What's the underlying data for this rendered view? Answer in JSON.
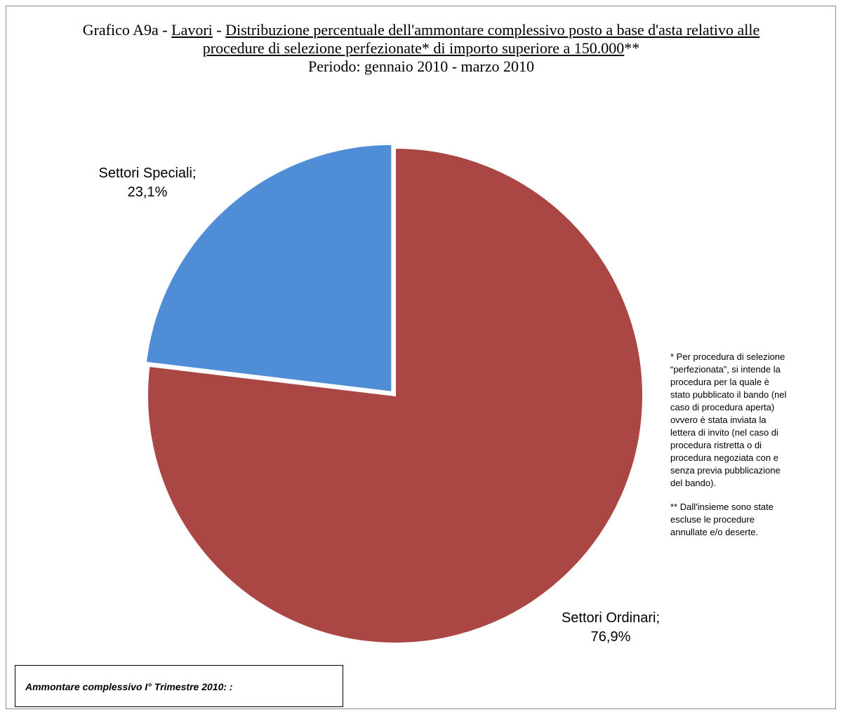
{
  "chart_data": {
    "type": "pie",
    "title": {
      "prefix": "Grafico A9a - ",
      "sector": "Lavori",
      "dash": " - ",
      "main": "Distribuzione percentuale dell'ammontare complessivo posto a base d'asta relativo alle procedure di selezione perfezionate* di importo superiore a 150.000",
      "suffix": "**",
      "period": "Periodo: gennaio 2010 - marzo 2010"
    },
    "slices": [
      {
        "label": "Settori Ordinari;",
        "value_label": "76,9%",
        "value": 76.9,
        "color": "#AA4643"
      },
      {
        "label": "Settori Speciali;",
        "value_label": "23,1%",
        "value": 23.1,
        "color": "#4F8ED6"
      }
    ]
  },
  "notes": {
    "note1": "* Per procedura di selezione “perfezionata”, si intende la procedura per la quale è stato pubblicato il bando (nel caso di procedura aperta) ovvero è stata inviata la lettera di invito (nel caso di procedura ristretta o di procedura negoziata con e senza previa pubblicazione del bando).",
    "note2": "** Dall'insieme sono state escluse le procedure annullate e/o deserte."
  },
  "total_box": {
    "label": "Ammontare complessivo I° Trimestre  2010:  :"
  }
}
